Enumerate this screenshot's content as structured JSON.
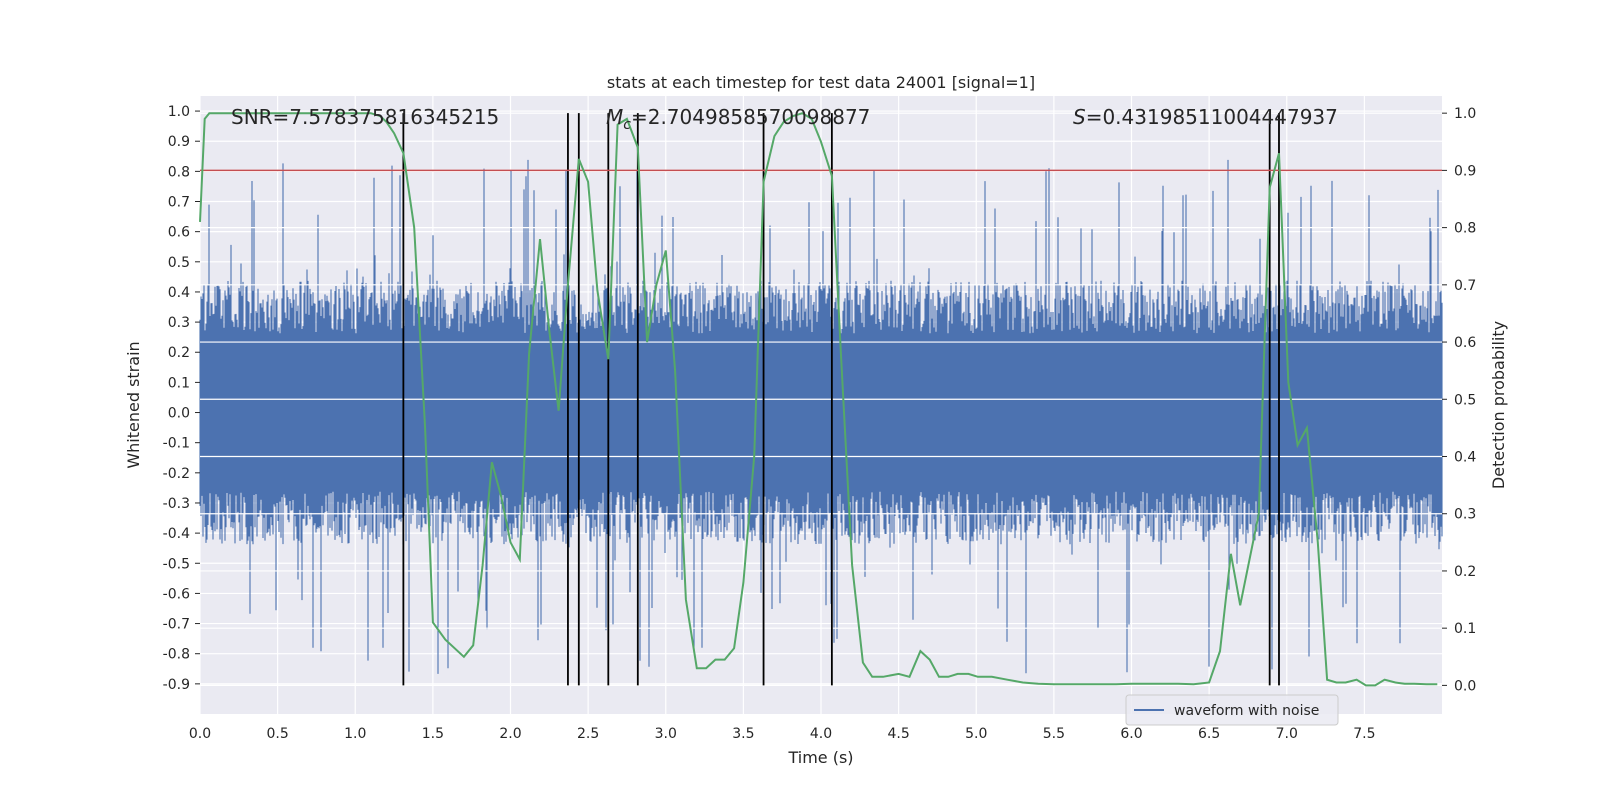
{
  "chart_data": {
    "type": "line",
    "title": "stats at each timestep for test data 24001 [signal=1]",
    "xlabel": "Time (s)",
    "ylabel": "Whitened strain",
    "ylabel_right": "Detection probability",
    "xlim": [
      0.0,
      8.0
    ],
    "ylim": [
      -1.0,
      1.05
    ],
    "ylim_right": [
      -0.05,
      1.03
    ],
    "x_ticks": [
      "0.0",
      "0.5",
      "1.0",
      "1.5",
      "2.0",
      "2.5",
      "3.0",
      "3.5",
      "4.0",
      "4.5",
      "5.0",
      "5.5",
      "6.0",
      "6.5",
      "7.0",
      "7.5"
    ],
    "y_ticks": [
      "1.0",
      "0.9",
      "0.8",
      "0.7",
      "0.6",
      "0.5",
      "0.4",
      "0.3",
      "0.2",
      "0.1",
      "0.0",
      "-0.1",
      "-0.2",
      "-0.3",
      "-0.4",
      "-0.5",
      "-0.6",
      "-0.7",
      "-0.8",
      "-0.9"
    ],
    "y_ticks_right": [
      "1.0",
      "0.9",
      "0.8",
      "0.7",
      "0.6",
      "0.5",
      "0.4",
      "0.3",
      "0.2",
      "0.1",
      "0.0"
    ],
    "grid": true,
    "legend": {
      "position": "lower-right",
      "entries": [
        "waveform with noise"
      ]
    },
    "annotations": {
      "snr": "SNR=7.578375816345215",
      "mc_symbol": "M",
      "mc_sub": "c",
      "mc_value": "=2.7049858570098877",
      "s_symbol": "S",
      "s_value": "=0.43198511004447937"
    },
    "threshold": {
      "axis": "right",
      "value": 0.9,
      "color": "#c44e52"
    },
    "vertical_markers": [
      1.31,
      2.37,
      2.44,
      2.63,
      2.82,
      3.63,
      4.07,
      6.89,
      6.95
    ],
    "series": [
      {
        "name": "waveform with noise",
        "axis": "left",
        "color": "#4c72b0",
        "x_range": [
          0.0,
          8.0
        ],
        "envelope_amplitude": 0.35,
        "spike_max": 0.84,
        "spike_min": -0.87
      },
      {
        "axis": "right",
        "color": "#55a868",
        "x": [
          0.0,
          0.03,
          0.06,
          0.12,
          0.2,
          0.3,
          0.5,
          0.7,
          0.9,
          1.0,
          1.1,
          1.16,
          1.2,
          1.25,
          1.31,
          1.38,
          1.45,
          1.5,
          1.58,
          1.7,
          1.76,
          1.82,
          1.88,
          1.94,
          2.0,
          2.06,
          2.12,
          2.19,
          2.25,
          2.31,
          2.37,
          2.44,
          2.5,
          2.56,
          2.63,
          2.69,
          2.75,
          2.82,
          2.88,
          2.94,
          3.0,
          3.06,
          3.13,
          3.2,
          3.26,
          3.32,
          3.38,
          3.44,
          3.5,
          3.57,
          3.63,
          3.7,
          3.76,
          3.82,
          3.88,
          3.94,
          4.0,
          4.07,
          4.13,
          4.2,
          4.27,
          4.33,
          4.4,
          4.5,
          4.57,
          4.64,
          4.7,
          4.76,
          4.82,
          4.88,
          4.95,
          5.01,
          5.1,
          5.2,
          5.3,
          5.4,
          5.5,
          5.7,
          5.9,
          6.0,
          6.1,
          6.2,
          6.3,
          6.4,
          6.5,
          6.57,
          6.64,
          6.7,
          6.76,
          6.82,
          6.89,
          6.95,
          7.01,
          7.07,
          7.13,
          7.2,
          7.26,
          7.32,
          7.38,
          7.45,
          7.51,
          7.57,
          7.63,
          7.7,
          7.76,
          7.82,
          7.9,
          7.97
        ],
        "values": [
          0.81,
          0.99,
          1.0,
          1.0,
          1.0,
          1.0,
          1.0,
          1.0,
          1.0,
          1.0,
          1.0,
          0.995,
          0.985,
          0.965,
          0.93,
          0.8,
          0.45,
          0.11,
          0.08,
          0.05,
          0.07,
          0.21,
          0.39,
          0.33,
          0.25,
          0.22,
          0.58,
          0.78,
          0.62,
          0.48,
          0.7,
          0.92,
          0.88,
          0.69,
          0.57,
          0.98,
          0.99,
          0.94,
          0.6,
          0.7,
          0.76,
          0.55,
          0.15,
          0.03,
          0.03,
          0.045,
          0.045,
          0.065,
          0.18,
          0.4,
          0.88,
          0.96,
          0.985,
          0.995,
          1.0,
          0.99,
          0.95,
          0.89,
          0.57,
          0.21,
          0.04,
          0.015,
          0.015,
          0.02,
          0.015,
          0.06,
          0.045,
          0.015,
          0.015,
          0.02,
          0.02,
          0.015,
          0.015,
          0.01,
          0.005,
          0.003,
          0.002,
          0.002,
          0.002,
          0.003,
          0.003,
          0.003,
          0.003,
          0.002,
          0.005,
          0.06,
          0.23,
          0.14,
          0.22,
          0.3,
          0.87,
          0.93,
          0.53,
          0.42,
          0.45,
          0.25,
          0.01,
          0.005,
          0.005,
          0.01,
          0.0,
          0.0,
          0.01,
          0.005,
          0.003,
          0.003,
          0.002,
          0.002
        ]
      }
    ]
  }
}
